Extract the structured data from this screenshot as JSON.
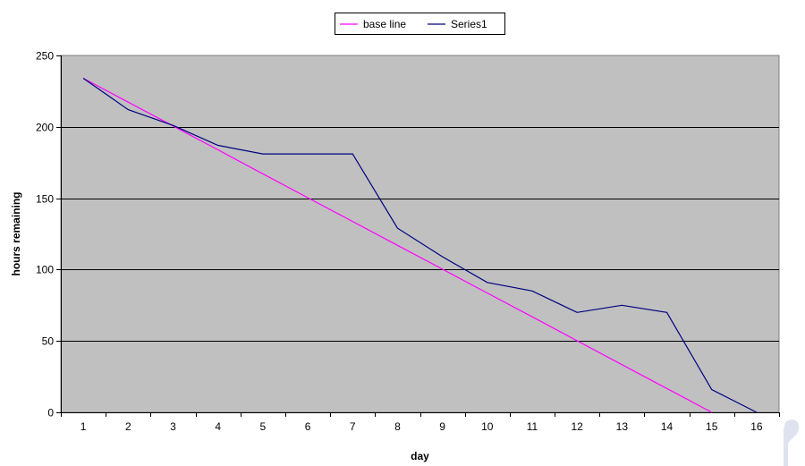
{
  "chart_data": {
    "type": "line",
    "title": "",
    "xlabel": "day",
    "ylabel": "hours remaining",
    "categories": [
      "1",
      "2",
      "3",
      "4",
      "5",
      "6",
      "7",
      "8",
      "9",
      "10",
      "11",
      "12",
      "13",
      "14",
      "15",
      "16"
    ],
    "ylim": [
      0,
      250
    ],
    "yticks": [
      0,
      50,
      100,
      150,
      200,
      250
    ],
    "grid": "horizontal",
    "legend_position": "top",
    "series": [
      {
        "name": "base line",
        "color": "#ff00ff",
        "values": [
          234,
          217.3,
          200.6,
          183.9,
          167.1,
          150.4,
          133.7,
          117,
          100.3,
          83.6,
          66.9,
          50.1,
          33.4,
          16.7,
          0,
          null
        ]
      },
      {
        "name": "Series1",
        "color": "#000080",
        "values": [
          234,
          212,
          201,
          187,
          181,
          181,
          181,
          129,
          109,
          91,
          85,
          70,
          75,
          70,
          16,
          0
        ]
      }
    ],
    "plot_background": "#c0c0c0",
    "gridline_color": "#000000"
  }
}
